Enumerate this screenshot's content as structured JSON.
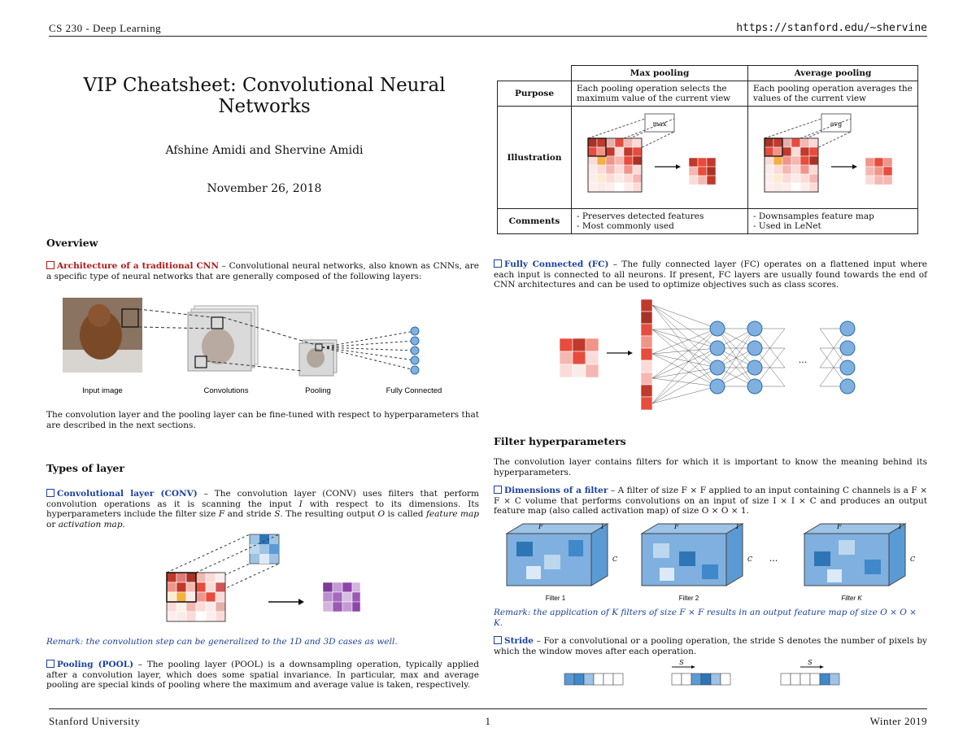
{
  "header": {
    "left": "CS 230 - Deep Learning",
    "right": "https://stanford.edu/~shervine"
  },
  "footer": {
    "left": "Stanford University",
    "center": "1",
    "right": "Winter 2019"
  },
  "title": "VIP Cheatsheet: Convolutional Neural Networks",
  "authors": "Afshine Amidi and Shervine Amidi",
  "date": "November 26, 2018",
  "overview": {
    "heading": "Overview",
    "arch_title": "Architecture of a traditional CNN",
    "arch_text": " – Convolutional neural networks, also known as CNNs, are a specific type of neural networks that are generally composed of the following layers:",
    "captions": [
      "Input image",
      "Convolutions",
      "Pooling",
      "Fully Connected"
    ],
    "after_text": "The convolution layer and the pooling layer can be fine-tuned with respect to hyperparameters that are described in the next sections."
  },
  "types": {
    "heading": "Types of layer",
    "conv_title": "Convolutional layer (CONV)",
    "conv_text_1": " – The convolution layer (CONV) uses filters that perform convolution operations as it is scanning the input ",
    "conv_I": "I",
    "conv_text_2": " with respect to its dimensions. Its hyperparameters include the filter size ",
    "conv_F": "F",
    "conv_text_3": " and stride ",
    "conv_S": "S",
    "conv_text_4": ". The resulting output ",
    "conv_O": "O",
    "conv_text_5": " is called ",
    "conv_fm": "feature map",
    "conv_or": " or ",
    "conv_am": "activation map",
    "conv_end": ".",
    "conv_remark": "Remark: the convolution step can be generalized to the 1D and 3D cases as well.",
    "pool_title": "Pooling (POOL)",
    "pool_text": " – The pooling layer (POOL) is a downsampling operation, typically applied after a convolution layer, which does some spatial invariance. In particular, max and average pooling are special kinds of pooling where the maximum and average value is taken, respectively."
  },
  "pool_table": {
    "col_max": "Max pooling",
    "col_avg": "Average pooling",
    "row_purpose": "Purpose",
    "max_purpose": "Each pooling operation selects the maximum value of the current view",
    "avg_purpose": "Each pooling operation averages the values of the current view",
    "row_illustration": "Illustration",
    "max_tag": "max",
    "avg_tag": "avg",
    "row_comments": "Comments",
    "max_comments": [
      "- Preserves detected features",
      "- Most commonly used"
    ],
    "avg_comments": [
      "- Downsamples feature map",
      "- Used in LeNet"
    ]
  },
  "fc": {
    "title": "Fully Connected (FC)",
    "text": " – The fully connected layer (FC) operates on a flattened input where each input is connected to all neurons. If present, FC layers are usually found towards the end of CNN architectures and can be used to optimize objectives such as class scores.",
    "dots": "..."
  },
  "filter": {
    "heading": "Filter hyperparameters",
    "intro": "The convolution layer contains filters for which it is important to know the meaning behind its hyperparameters.",
    "dim_title": "Dimensions of a filter",
    "dim_text": " – A filter of size F × F applied to an input containing C channels is a F × F × C volume that performs convolutions on an input of size I × I × C and produces an output feature map (also called activation map) of size O × O × 1.",
    "labels": {
      "F": "F",
      "I": "I",
      "C": "C",
      "dots": "...",
      "filter1": "Filter 1",
      "filter2": "Filter 2",
      "filterK": "Filter K"
    },
    "remark": "Remark: the application of K filters of size F × F results in an output feature map of size O × O × K.",
    "stride_title": "Stride",
    "stride_text": " – For a convolutional or a pooling operation, the stride S denotes the number of pixels by which the window moves after each operation.",
    "stride_label": "S"
  }
}
